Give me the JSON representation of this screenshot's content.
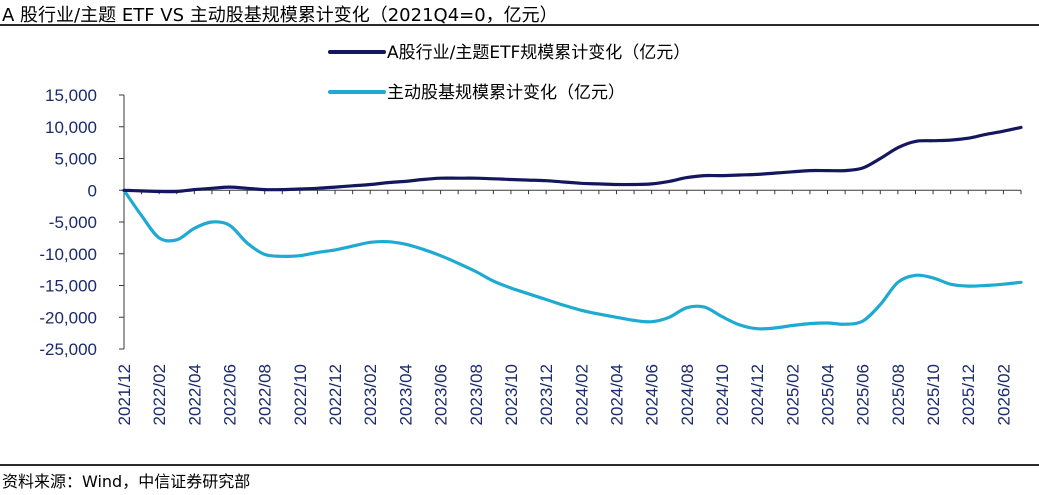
{
  "title": "A 股行业/主题 ETF VS  主动股基规模累计变化（2021Q4=0，亿元）",
  "source": "资料来源：Wind，中信证券研究部",
  "chart_data": {
    "type": "line",
    "title": "A 股行业/主题 ETF VS  主动股基规模累计变化（2021Q4=0，亿元）",
    "xlabel": "",
    "ylabel": "",
    "ylim": [
      -25000,
      15000
    ],
    "yticks": [
      "15,000",
      "10,000",
      "5,000",
      "0",
      "-5,000",
      "-10,000",
      "-15,000",
      "-20,000",
      "-25,000"
    ],
    "ytick_values": [
      15000,
      10000,
      5000,
      0,
      -5000,
      -10000,
      -15000,
      -20000,
      -25000
    ],
    "xticks": [
      "2021/12",
      "2022/02",
      "2022/04",
      "2022/06",
      "2022/08",
      "2022/10",
      "2022/12",
      "2023/02",
      "2023/04",
      "2023/06",
      "2023/08",
      "2023/10",
      "2023/12",
      "2024/02",
      "2024/04",
      "2024/06",
      "2024/08",
      "2024/10",
      "2024/12",
      "2025/02",
      "2025/04",
      "2025/06",
      "2025/08",
      "2025/10",
      "2025/12",
      "2026/02"
    ],
    "x": [
      "2021/12",
      "2022/01",
      "2022/02",
      "2022/03",
      "2022/04",
      "2022/05",
      "2022/06",
      "2022/07",
      "2022/08",
      "2022/09",
      "2022/10",
      "2022/11",
      "2022/12",
      "2023/01",
      "2023/02",
      "2023/03",
      "2023/04",
      "2023/05",
      "2023/06",
      "2023/07",
      "2023/08",
      "2023/09",
      "2023/10",
      "2023/11",
      "2023/12",
      "2024/01",
      "2024/02",
      "2024/03",
      "2024/04",
      "2024/05",
      "2024/06",
      "2024/07",
      "2024/08",
      "2024/09",
      "2024/10",
      "2024/11",
      "2024/12",
      "2025/01",
      "2025/02",
      "2025/03",
      "2025/04",
      "2025/05",
      "2025/06",
      "2025/07",
      "2025/08",
      "2025/09",
      "2025/10",
      "2025/11",
      "2025/12",
      "2026/01",
      "2026/02",
      "2026/03"
    ],
    "legend_position": "top-right",
    "grid": false,
    "series": [
      {
        "name": "A股行业/主题ETF规模累计变化（亿元）",
        "color": "#14175e",
        "values": [
          0,
          -100,
          -200,
          -200,
          100,
          300,
          500,
          300,
          100,
          100,
          200,
          300,
          500,
          700,
          900,
          1200,
          1400,
          1700,
          1900,
          1900,
          1900,
          1800,
          1700,
          1600,
          1500,
          1300,
          1100,
          1000,
          900,
          900,
          1000,
          1400,
          2000,
          2300,
          2300,
          2400,
          2500,
          2700,
          2900,
          3100,
          3100,
          3100,
          3500,
          5000,
          6700,
          7700,
          7800,
          7900,
          8200,
          8800,
          9300,
          9900
        ]
      },
      {
        "name": "主动股基规模累计变化（亿元）",
        "color": "#1eaad2",
        "values": [
          0,
          -4000,
          -7500,
          -7800,
          -6000,
          -5000,
          -5500,
          -8300,
          -10100,
          -10400,
          -10300,
          -9800,
          -9400,
          -8800,
          -8200,
          -8100,
          -8500,
          -9300,
          -10300,
          -11500,
          -12800,
          -14300,
          -15400,
          -16300,
          -17200,
          -18100,
          -18900,
          -19500,
          -20000,
          -20500,
          -20700,
          -20000,
          -18500,
          -18400,
          -19900,
          -21200,
          -21800,
          -21700,
          -21300,
          -21000,
          -20900,
          -21100,
          -20600,
          -18000,
          -14500,
          -13400,
          -13800,
          -14800,
          -15100,
          -15000,
          -14800,
          -14500
        ]
      }
    ]
  }
}
